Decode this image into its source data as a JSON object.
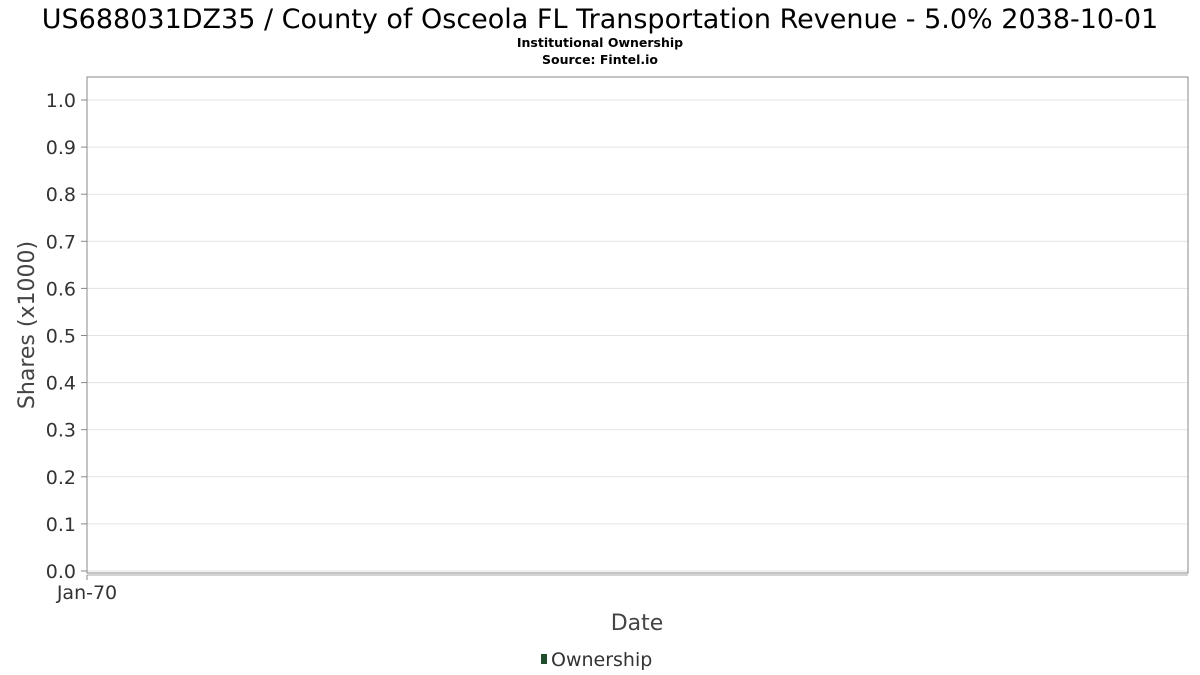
{
  "chart_data": {
    "type": "line",
    "title": "US688031DZ35 / County of Osceola FL Transportation Revenue - 5.0% 2038-10-01",
    "subtitle": "Institutional Ownership",
    "source": "Source: Fintel.io",
    "xlabel": "Date",
    "ylabel": "Shares (x1000)",
    "ylim": [
      0,
      1.0
    ],
    "yticks": [
      "0.0",
      "0.1",
      "0.2",
      "0.3",
      "0.4",
      "0.5",
      "0.6",
      "0.7",
      "0.8",
      "0.9",
      "1.0"
    ],
    "xticks": [
      "Jan-70"
    ],
    "grid": true,
    "legend_position": "bottom-center",
    "series": [
      {
        "name": "Ownership",
        "color": "#1f4d2b",
        "values": []
      }
    ]
  }
}
